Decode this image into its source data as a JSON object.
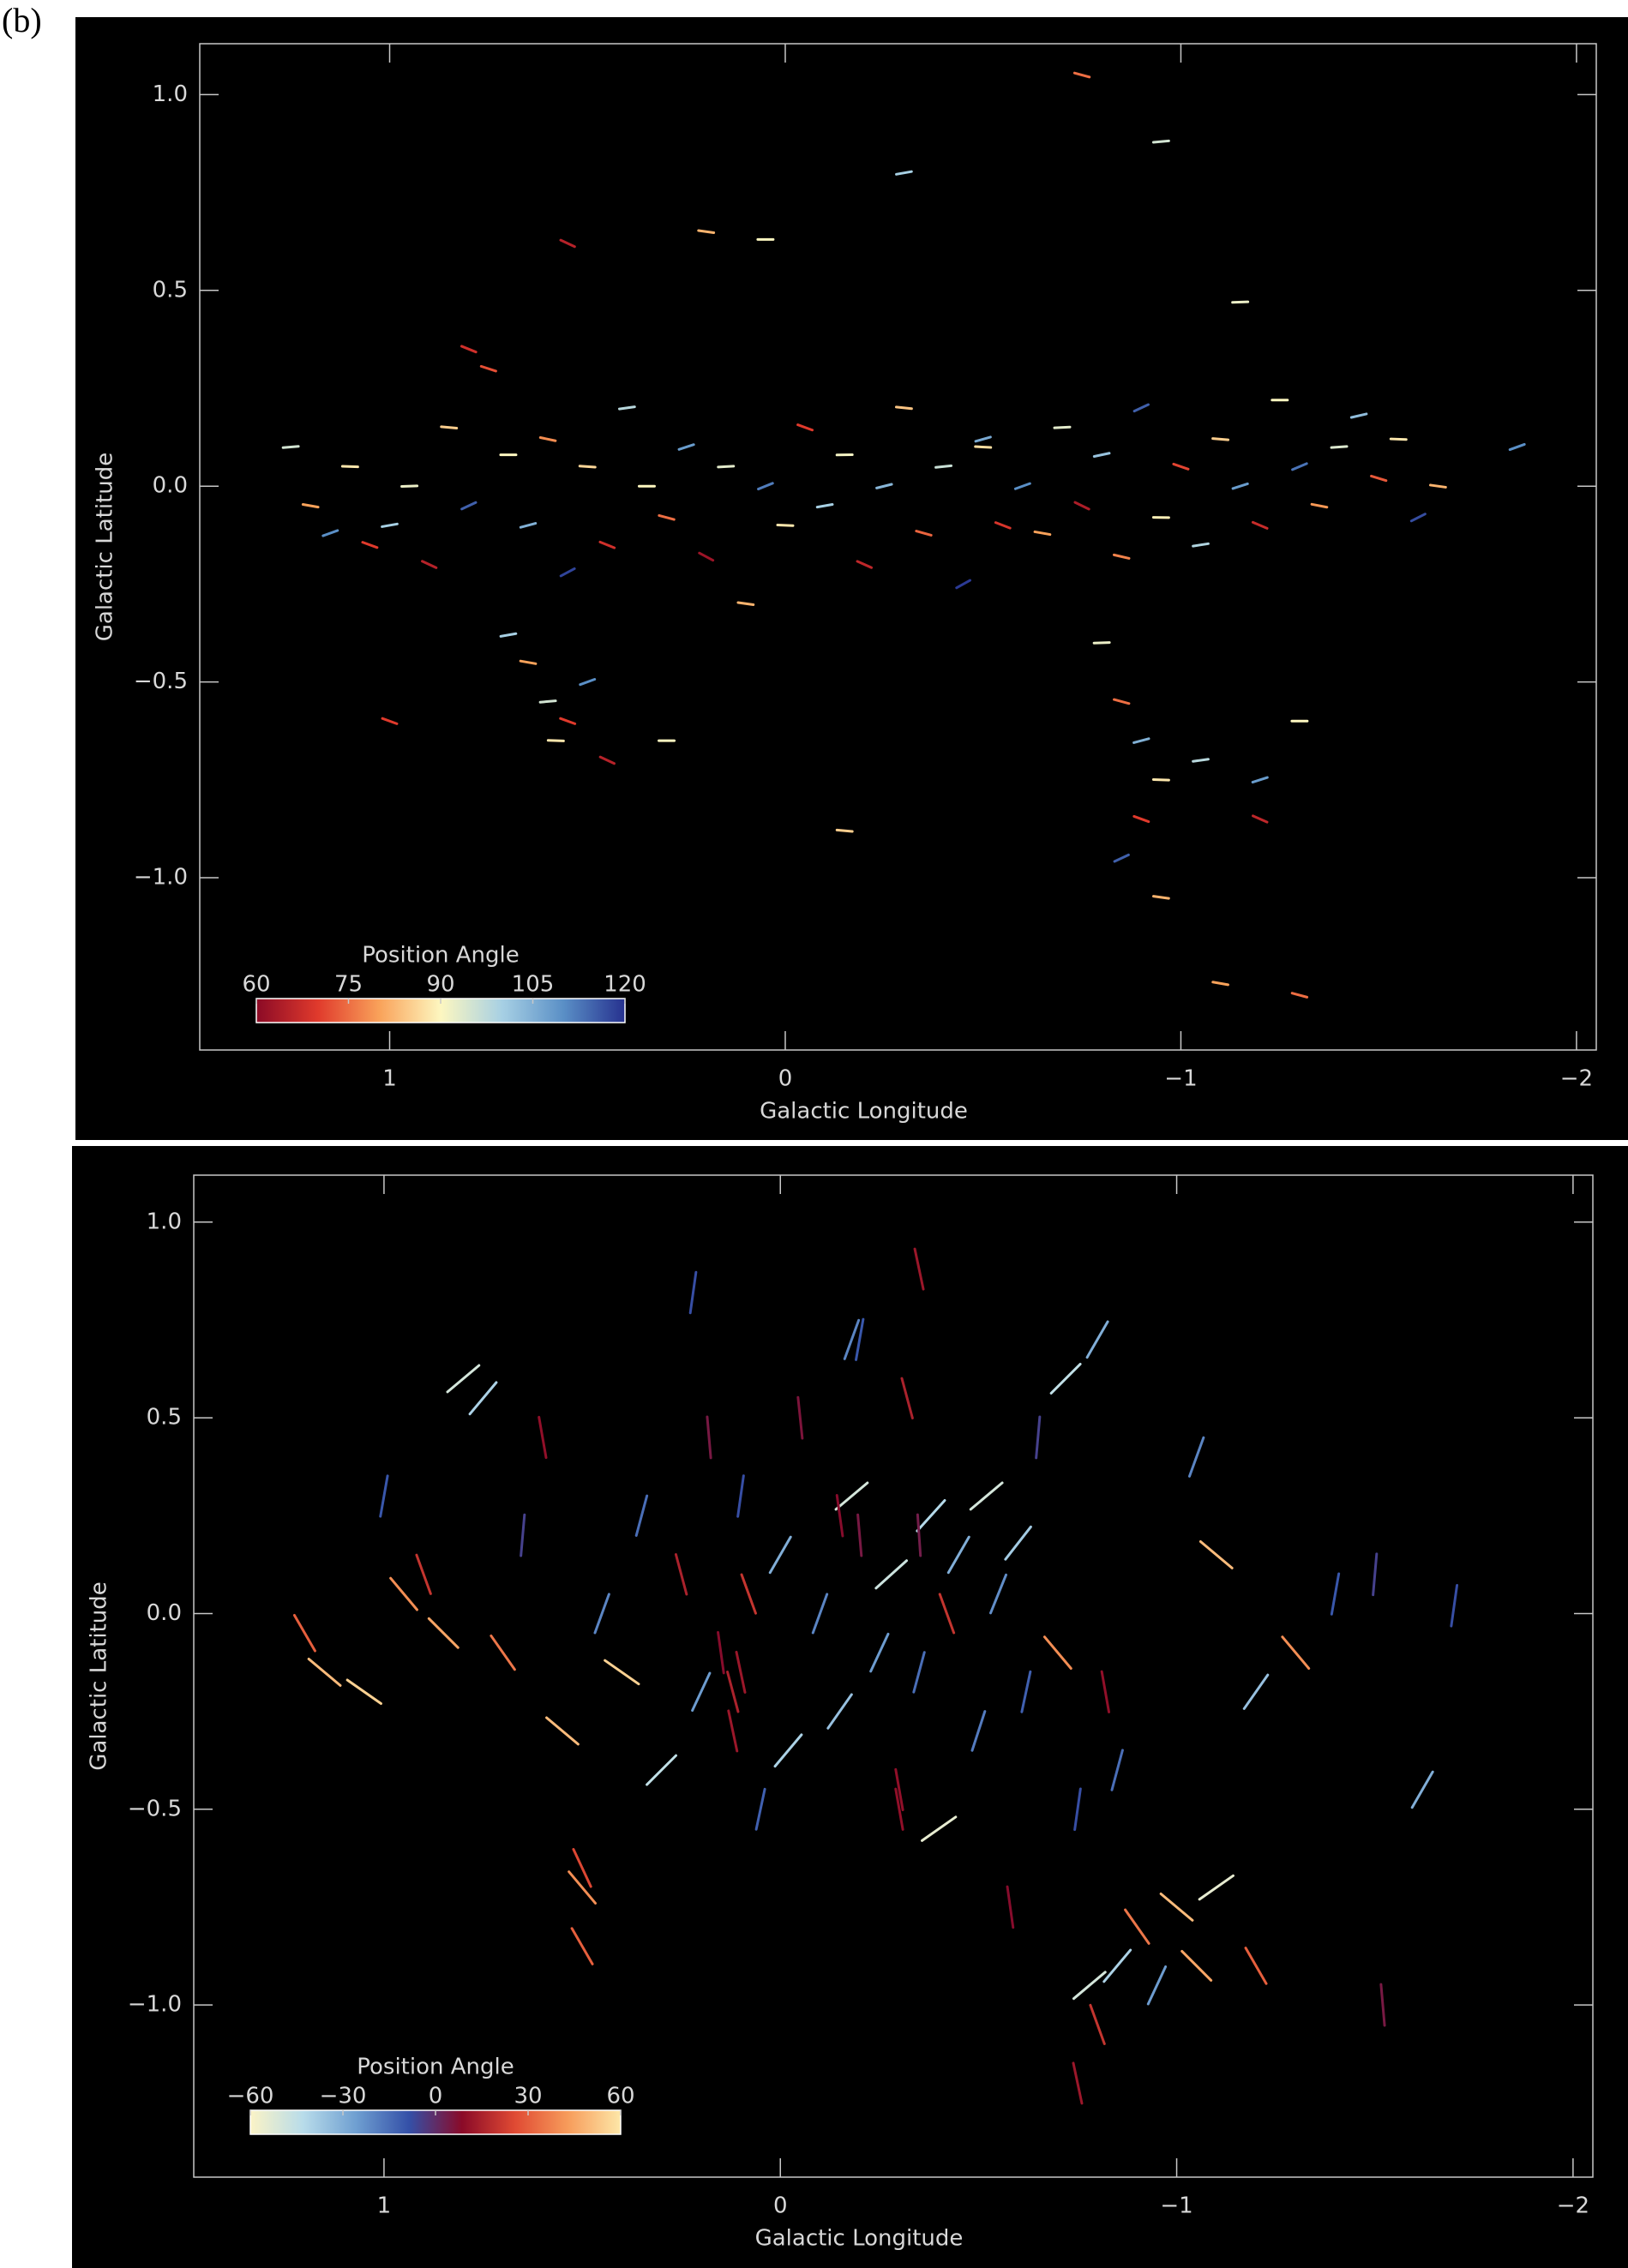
{
  "chart_data": [
    {
      "type": "segments",
      "panel_label": "(b)",
      "xlabel": "Galactic Longitude",
      "ylabel": "Galactic Latitude",
      "xlim": [
        1.48,
        -2.05
      ],
      "ylim": [
        -1.44,
        1.13
      ],
      "xticks": [
        1,
        0,
        {
          "value": -1,
          "label": "−1"
        },
        {
          "value": -2,
          "label": "−2"
        }
      ],
      "yticks": [
        {
          "value": 1,
          "label": "1.0"
        },
        0.5,
        {
          "value": 0,
          "label": "0.0"
        },
        {
          "value": -0.5,
          "label": "−0.5"
        },
        {
          "value": -1,
          "label": "−1.0"
        }
      ],
      "colorbar": {
        "label": "Position Angle",
        "ticks": [
          60,
          75,
          90,
          105,
          120
        ],
        "colors": [
          "#8b0a26",
          "#e03a2c",
          "#f9a25a",
          "#fdf7c0",
          "#a7d0e4",
          "#5a8fc6",
          "#26318f"
        ]
      },
      "segments": [
        [
          1.25,
          0.1,
          95
        ],
        [
          1.2,
          -0.05,
          80
        ],
        [
          1.15,
          -0.12,
          110
        ],
        [
          1.1,
          0.05,
          88
        ],
        [
          1.05,
          -0.15,
          70
        ],
        [
          1.0,
          -0.1,
          100
        ],
        [
          0.95,
          0.0,
          92
        ],
        [
          0.9,
          -0.2,
          65
        ],
        [
          0.85,
          0.15,
          85
        ],
        [
          0.8,
          -0.05,
          115
        ],
        [
          0.75,
          0.3,
          72
        ],
        [
          0.7,
          0.08,
          90
        ],
        [
          0.65,
          -0.1,
          105
        ],
        [
          0.6,
          0.12,
          78
        ],
        [
          0.55,
          -0.22,
          118
        ],
        [
          0.5,
          0.05,
          86
        ],
        [
          0.45,
          -0.15,
          68
        ],
        [
          0.4,
          0.2,
          98
        ],
        [
          0.35,
          0.0,
          90
        ],
        [
          0.3,
          -0.08,
          75
        ],
        [
          0.25,
          0.1,
          108
        ],
        [
          0.2,
          -0.18,
          62
        ],
        [
          0.15,
          0.05,
          93
        ],
        [
          0.1,
          -0.3,
          82
        ],
        [
          0.05,
          0.0,
          112
        ],
        [
          0.0,
          -0.1,
          88
        ],
        [
          -0.05,
          0.15,
          70
        ],
        [
          -0.1,
          -0.05,
          100
        ],
        [
          -0.15,
          0.08,
          91
        ],
        [
          -0.2,
          -0.2,
          66
        ],
        [
          -0.25,
          0.0,
          104
        ],
        [
          -0.3,
          0.2,
          84
        ],
        [
          -0.35,
          -0.12,
          74
        ],
        [
          -0.4,
          0.05,
          96
        ],
        [
          -0.45,
          -0.25,
          119
        ],
        [
          -0.5,
          0.1,
          87
        ],
        [
          -0.55,
          -0.1,
          69
        ],
        [
          -0.6,
          0.0,
          110
        ],
        [
          -0.65,
          -0.12,
          80
        ],
        [
          -0.7,
          0.15,
          93
        ],
        [
          -0.75,
          -0.05,
          64
        ],
        [
          -0.8,
          0.08,
          102
        ],
        [
          -0.85,
          -0.18,
          77
        ],
        [
          -0.9,
          0.2,
          115
        ],
        [
          -0.95,
          -0.08,
          89
        ],
        [
          -1.0,
          0.05,
          71
        ],
        [
          -1.05,
          -0.15,
          99
        ],
        [
          -1.1,
          0.12,
          85
        ],
        [
          -1.15,
          0.0,
          108
        ],
        [
          -1.2,
          -0.1,
          67
        ],
        [
          -1.25,
          0.22,
          90
        ],
        [
          -1.3,
          0.05,
          113
        ],
        [
          -1.35,
          -0.05,
          79
        ],
        [
          -1.4,
          0.1,
          94
        ],
        [
          -1.45,
          0.18,
          103
        ],
        [
          -1.5,
          0.02,
          73
        ],
        [
          -1.55,
          0.12,
          88
        ],
        [
          -1.6,
          -0.08,
          117
        ],
        [
          -1.65,
          0.0,
          82
        ],
        [
          -1.85,
          0.1,
          110
        ],
        [
          0.65,
          -0.45,
          80
        ],
        [
          0.6,
          -0.55,
          95
        ],
        [
          0.55,
          -0.6,
          70
        ],
        [
          0.58,
          -0.65,
          88
        ],
        [
          0.5,
          -0.5,
          110
        ],
        [
          0.45,
          -0.7,
          65
        ],
        [
          0.3,
          -0.65,
          90
        ],
        [
          0.7,
          -0.38,
          100
        ],
        [
          -0.8,
          -0.4,
          92
        ],
        [
          -0.85,
          -0.55,
          75
        ],
        [
          -0.9,
          -0.65,
          105
        ],
        [
          -0.95,
          -0.75,
          88
        ],
        [
          -0.9,
          -0.85,
          70
        ],
        [
          -0.85,
          -0.95,
          115
        ],
        [
          -0.95,
          -1.05,
          82
        ],
        [
          -1.05,
          -0.7,
          98
        ],
        [
          -1.2,
          -0.85,
          66
        ],
        [
          -1.3,
          -0.6,
          90
        ],
        [
          -1.2,
          -0.75,
          108
        ],
        [
          0.2,
          0.65,
          82
        ],
        [
          0.05,
          0.63,
          90
        ],
        [
          -0.3,
          0.8,
          100
        ],
        [
          -0.95,
          0.88,
          95
        ],
        [
          -1.15,
          0.47,
          92
        ],
        [
          -0.75,
          1.05,
          75
        ],
        [
          0.55,
          0.62,
          65
        ],
        [
          1.0,
          -0.6,
          70
        ],
        [
          -0.15,
          -0.88,
          85
        ],
        [
          -1.1,
          -1.27,
          80
        ],
        [
          -1.3,
          -1.3,
          75
        ],
        [
          0.8,
          0.35,
          68
        ],
        [
          -0.5,
          0.12,
          106
        ]
      ]
    },
    {
      "type": "segments",
      "xlabel": "Galactic Longitude",
      "ylabel": "Galactic Latitude",
      "xlim": [
        1.48,
        -2.05
      ],
      "ylim": [
        -1.44,
        1.12
      ],
      "xticks": [
        1,
        0,
        {
          "value": -1,
          "label": "−1"
        },
        {
          "value": -2,
          "label": "−2"
        }
      ],
      "yticks": [
        {
          "value": 1,
          "label": "1.0"
        },
        0.5,
        {
          "value": 0,
          "label": "0.0"
        },
        {
          "value": -0.5,
          "label": "−0.5"
        },
        {
          "value": -1,
          "label": "−1.0"
        }
      ],
      "colorbar": {
        "label": "Position Angle",
        "ticks": [
          {
            "value": -60,
            "label": "−60"
          },
          {
            "value": -30,
            "label": "−30"
          },
          0,
          30,
          60
        ],
        "colors": [
          "#fbf3c6",
          "#b8dcea",
          "#6f9fd1",
          "#3450a8",
          "#8a0a28",
          "#e04a33",
          "#f79c5b",
          "#fde7a8"
        ]
      },
      "segments": [
        [
          1.2,
          -0.05,
          30
        ],
        [
          1.15,
          -0.15,
          50
        ],
        [
          1.05,
          -0.2,
          55
        ],
        [
          1.0,
          0.3,
          -10
        ],
        [
          0.95,
          0.05,
          40
        ],
        [
          0.9,
          0.1,
          20
        ],
        [
          0.85,
          -0.05,
          45
        ],
        [
          0.8,
          0.6,
          -50
        ],
        [
          0.75,
          0.55,
          -40
        ],
        [
          0.7,
          -0.1,
          35
        ],
        [
          0.65,
          0.2,
          -5
        ],
        [
          0.6,
          0.45,
          10
        ],
        [
          0.55,
          -0.3,
          50
        ],
        [
          0.5,
          -0.65,
          25
        ],
        [
          0.45,
          0.0,
          -20
        ],
        [
          0.4,
          -0.15,
          55
        ],
        [
          0.35,
          0.25,
          -15
        ],
        [
          0.3,
          -0.4,
          -45
        ],
        [
          0.25,
          0.1,
          15
        ],
        [
          0.2,
          -0.2,
          -25
        ],
        [
          0.18,
          0.45,
          5
        ],
        [
          0.15,
          -0.1,
          8
        ],
        [
          0.12,
          -0.3,
          12
        ],
        [
          0.1,
          0.3,
          -8
        ],
        [
          0.08,
          0.05,
          20
        ],
        [
          0.05,
          -0.5,
          -12
        ],
        [
          0.0,
          0.15,
          -30
        ],
        [
          -0.02,
          -0.35,
          -40
        ],
        [
          -0.05,
          0.5,
          6
        ],
        [
          -0.1,
          0.0,
          -20
        ],
        [
          -0.15,
          -0.25,
          -35
        ],
        [
          -0.18,
          0.3,
          -50
        ],
        [
          -0.2,
          0.7,
          -10
        ],
        [
          -0.25,
          -0.1,
          -25
        ],
        [
          -0.28,
          0.1,
          -48
        ],
        [
          -0.3,
          -0.45,
          10
        ],
        [
          -0.32,
          0.55,
          15
        ],
        [
          -0.35,
          -0.15,
          -15
        ],
        [
          -0.38,
          0.25,
          -42
        ],
        [
          -0.4,
          -0.55,
          -55
        ],
        [
          -0.42,
          0.0,
          20
        ],
        [
          -0.45,
          0.15,
          -30
        ],
        [
          -0.5,
          -0.3,
          -18
        ],
        [
          -0.52,
          0.3,
          -50
        ],
        [
          -0.55,
          0.05,
          -22
        ],
        [
          -0.58,
          -0.75,
          8
        ],
        [
          -0.6,
          0.18,
          -38
        ],
        [
          -0.62,
          -0.2,
          -12
        ],
        [
          -0.65,
          0.45,
          -5
        ],
        [
          -0.7,
          -0.1,
          40
        ],
        [
          -0.72,
          0.6,
          -45
        ],
        [
          -0.75,
          -0.5,
          -8
        ],
        [
          -0.8,
          0.7,
          -30
        ],
        [
          -0.82,
          -0.2,
          10
        ],
        [
          -0.85,
          -0.4,
          -15
        ],
        [
          -0.78,
          -0.95,
          -50
        ],
        [
          -0.8,
          -1.05,
          20
        ],
        [
          -0.75,
          -1.2,
          12
        ],
        [
          -0.85,
          -0.9,
          -40
        ],
        [
          -0.9,
          -0.8,
          35
        ],
        [
          -0.95,
          -0.95,
          -25
        ],
        [
          -1.0,
          -0.75,
          50
        ],
        [
          -1.05,
          -0.9,
          45
        ],
        [
          -1.1,
          -0.7,
          -55
        ],
        [
          -1.2,
          -0.9,
          30
        ],
        [
          -1.05,
          0.4,
          -20
        ],
        [
          -1.1,
          0.15,
          50
        ],
        [
          -1.2,
          -0.2,
          -35
        ],
        [
          -1.3,
          -0.1,
          40
        ],
        [
          -1.4,
          0.05,
          -10
        ],
        [
          -1.5,
          0.1,
          -5
        ],
        [
          -1.62,
          -0.45,
          -30
        ],
        [
          -1.7,
          0.02,
          -8
        ],
        [
          -1.52,
          -1.0,
          5
        ],
        [
          -0.2,
          0.2,
          5
        ],
        [
          -0.15,
          0.25,
          8
        ],
        [
          0.1,
          -0.15,
          12
        ],
        [
          0.12,
          -0.2,
          15
        ],
        [
          -0.3,
          -0.5,
          10
        ],
        [
          -0.35,
          0.2,
          4
        ],
        [
          0.22,
          0.82,
          -8
        ],
        [
          -0.35,
          0.88,
          12
        ],
        [
          -0.18,
          0.7,
          -20
        ],
        [
          0.5,
          -0.7,
          40
        ],
        [
          0.5,
          -0.85,
          30
        ]
      ]
    }
  ]
}
